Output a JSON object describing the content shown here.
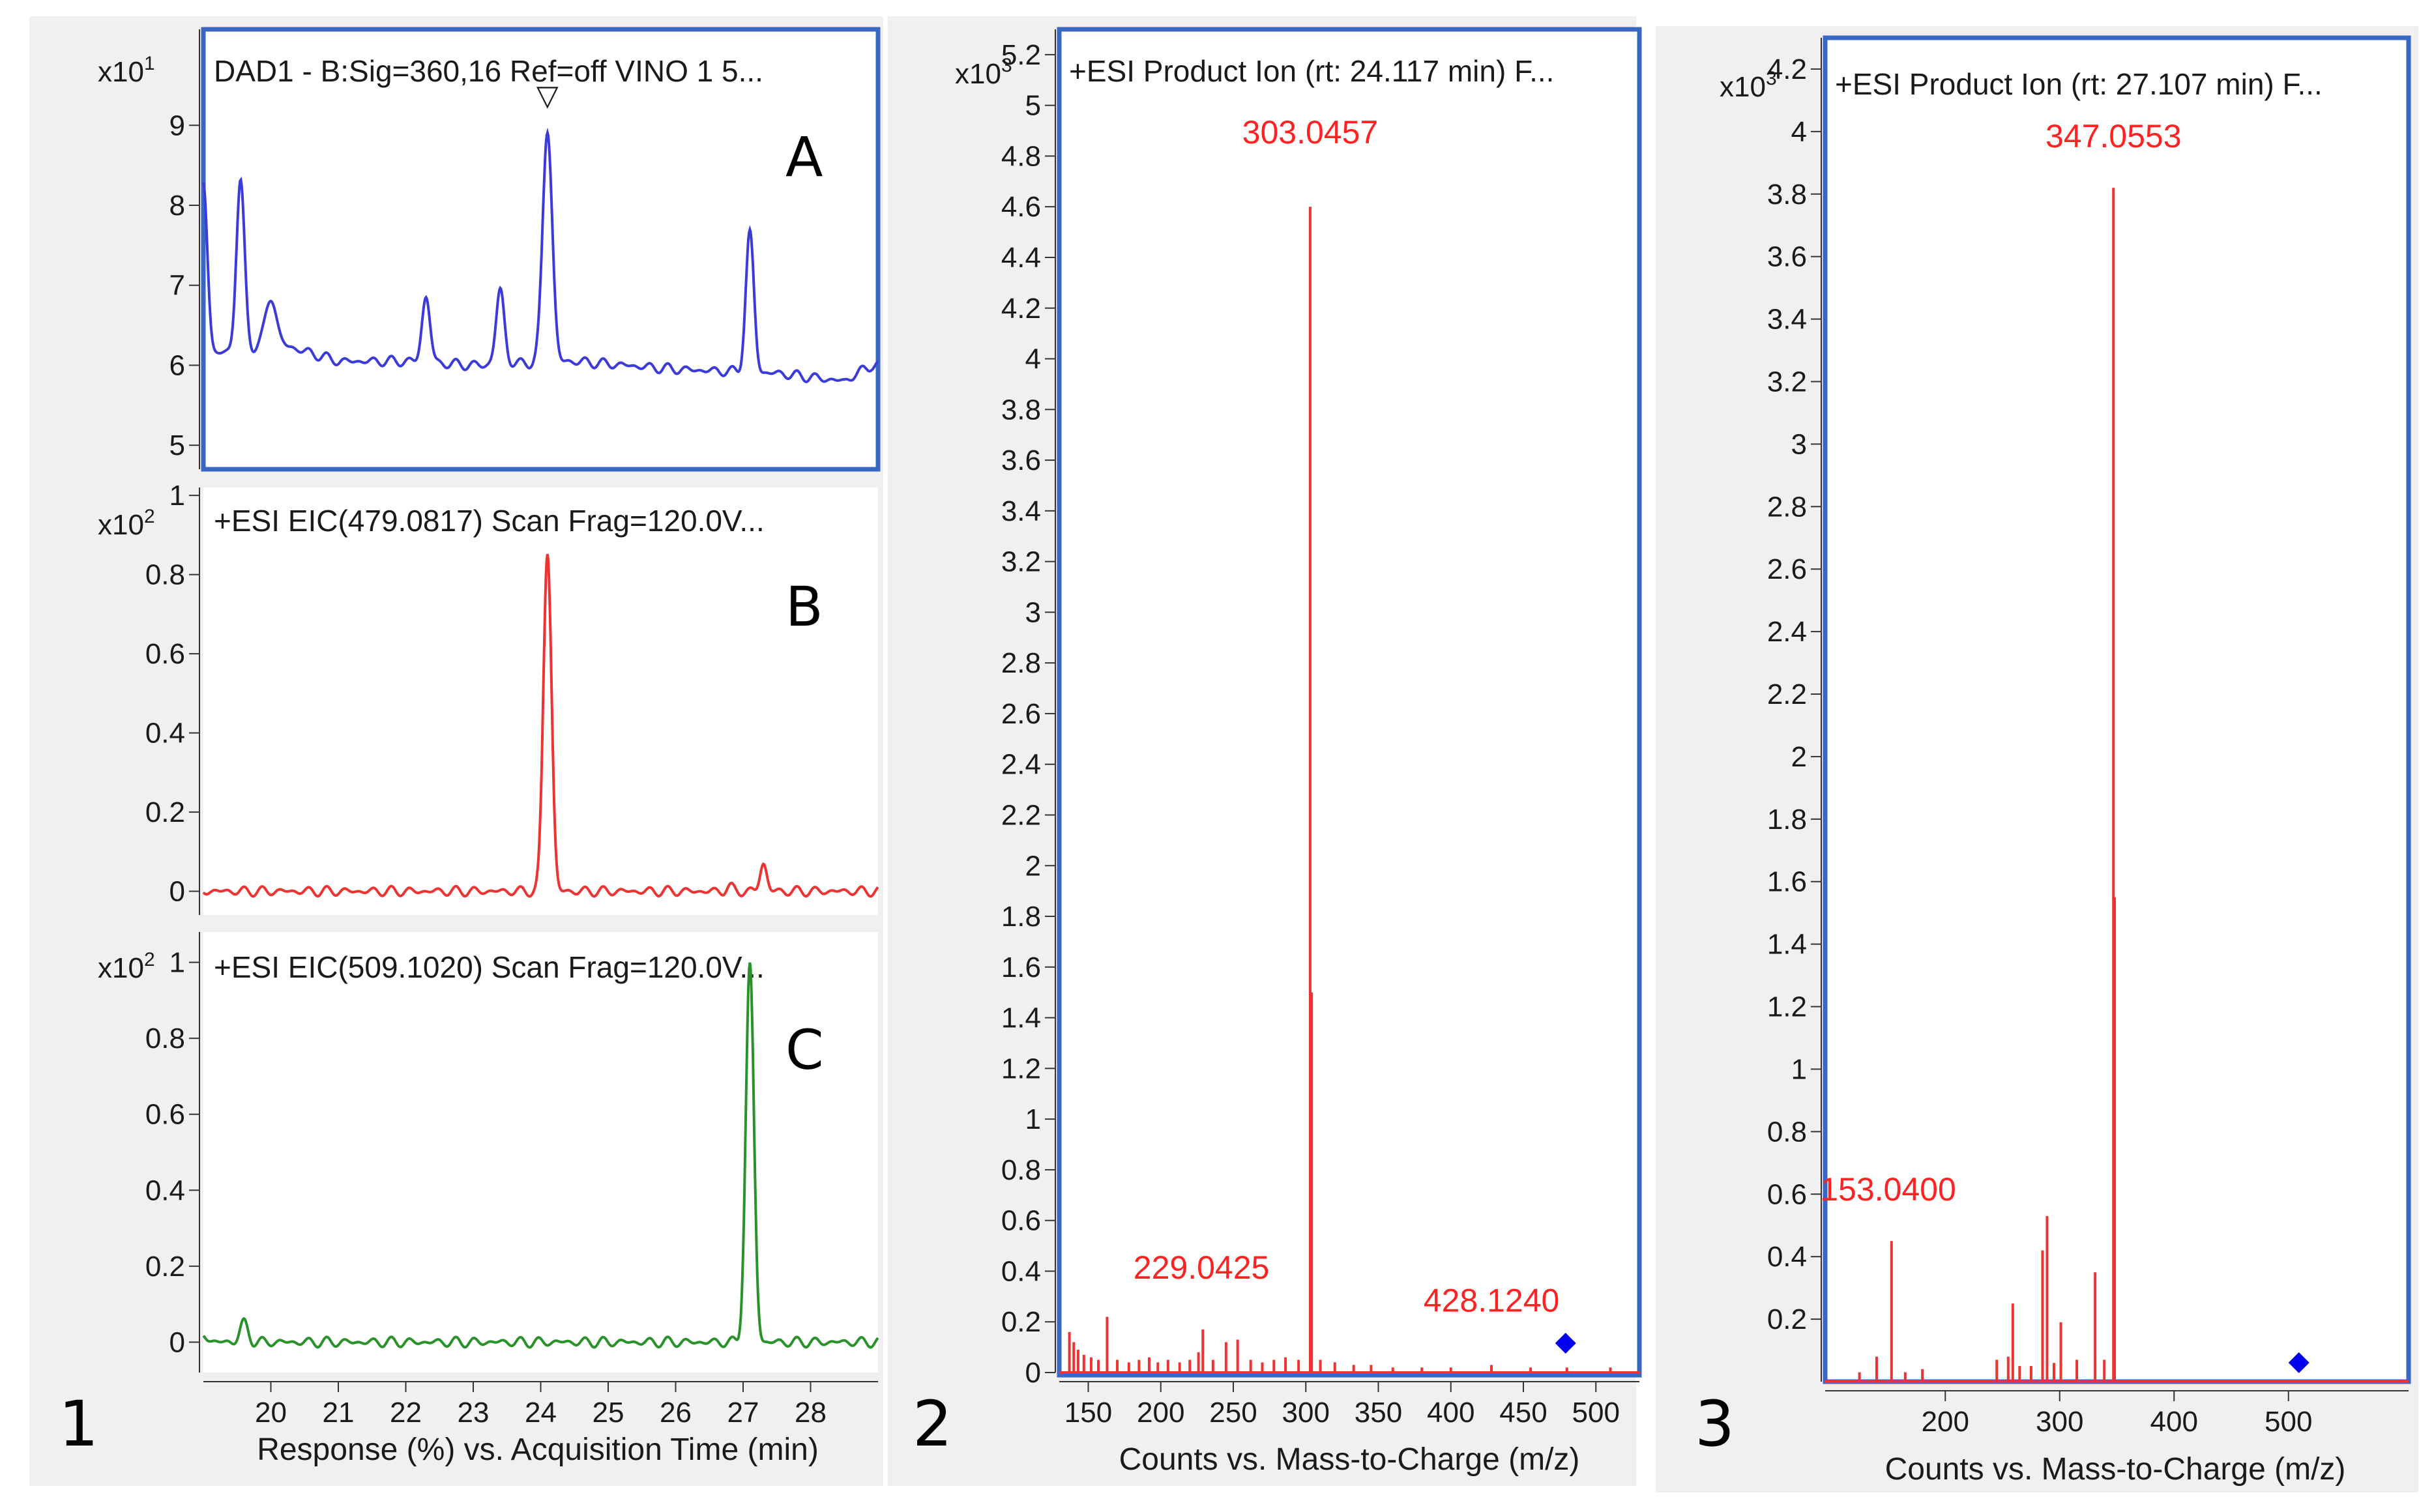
{
  "panel_numbers": [
    "1",
    "2",
    "3"
  ],
  "colors": {
    "frame": "#3a66c4",
    "blue_trace": "#3b3bd9",
    "red_trace": "#ee3333",
    "green_trace": "#2a922a",
    "marker": "#0000ee",
    "annotation": "#ff2222"
  },
  "chart_data": [
    {
      "id": "A",
      "type": "line",
      "panel_letter": "A",
      "title": "DAD1 - B:Sig=360,16  Ref=off VINO 1 5...",
      "multiplier_base": "x10",
      "multiplier_exp": "1",
      "xlim": [
        19.0,
        29.0
      ],
      "ylim": [
        4.7,
        10.2
      ],
      "yticks": [
        5,
        6,
        7,
        8,
        9
      ],
      "baseline_points": [
        [
          19.0,
          6.1
        ],
        [
          19.5,
          6.2
        ],
        [
          20.2,
          6.25
        ],
        [
          21.0,
          6.05
        ],
        [
          22.0,
          6.05
        ],
        [
          23.0,
          6.0
        ],
        [
          24.5,
          6.05
        ],
        [
          26.0,
          5.95
        ],
        [
          27.5,
          5.9
        ],
        [
          28.5,
          5.8
        ],
        [
          28.9,
          6.0
        ]
      ],
      "peaks": [
        [
          19.0,
          8.3,
          0.06
        ],
        [
          19.55,
          8.3,
          0.06
        ],
        [
          20.0,
          6.85,
          0.08
        ],
        [
          22.3,
          6.85,
          0.06
        ],
        [
          23.4,
          6.95,
          0.06
        ],
        [
          24.1,
          8.95,
          0.07
        ],
        [
          27.1,
          7.65,
          0.06
        ]
      ],
      "marker_label": "▽",
      "marker_x": 24.1
    },
    {
      "id": "B",
      "type": "line",
      "panel_letter": "B",
      "title": "+ESI EIC(479.0817) Scan Frag=120.0V...",
      "multiplier_base": "x10",
      "multiplier_exp": "2",
      "xlim": [
        19.0,
        29.0
      ],
      "ylim": [
        -0.06,
        1.02
      ],
      "yticks": [
        0,
        0.2,
        0.4,
        0.6,
        0.8,
        1
      ],
      "ytick_labels": [
        "0",
        "0.2",
        "0.4",
        "0.6",
        "0.8",
        "1"
      ],
      "baseline": 0.0,
      "peaks": [
        [
          24.1,
          0.86,
          0.06
        ],
        [
          27.3,
          0.07,
          0.05
        ],
        [
          26.8,
          0.01,
          0.05
        ]
      ]
    },
    {
      "id": "C",
      "type": "line",
      "panel_letter": "C",
      "title": "+ESI EIC(509.1020) Scan Frag=120.0V...",
      "multiplier_base": "x10",
      "multiplier_exp": "2",
      "xlim": [
        19.0,
        29.0
      ],
      "ylim": [
        -0.08,
        1.08
      ],
      "yticks": [
        0,
        0.2,
        0.4,
        0.6,
        0.8,
        1
      ],
      "ytick_labels": [
        "0",
        "0.2",
        "0.4",
        "0.6",
        "0.8",
        "1"
      ],
      "baseline": 0.0,
      "peaks": [
        [
          19.6,
          0.05,
          0.06
        ],
        [
          27.1,
          0.99,
          0.06
        ],
        [
          19.0,
          0.02,
          0.06
        ]
      ],
      "xticks": [
        20,
        21,
        22,
        23,
        24,
        25,
        26,
        27,
        28
      ],
      "xtick_labels": [
        "20",
        "21",
        "22",
        "23",
        "24",
        "25",
        "26",
        "27",
        "28"
      ],
      "xlabel": "Response (%) vs. Acquisition Time (min)"
    },
    {
      "id": "M2",
      "type": "bar",
      "title": "+ESI Product Ion (rt: 24.117 min) F...",
      "multiplier_base": "x10",
      "multiplier_exp": "3",
      "xlim": [
        130,
        530
      ],
      "ylim": [
        0,
        5.3
      ],
      "yticks": [
        0,
        0.2,
        0.4,
        0.6,
        0.8,
        1,
        1.2,
        1.4,
        1.6,
        1.8,
        2,
        2.2,
        2.4,
        2.6,
        2.8,
        3,
        3.2,
        3.4,
        3.6,
        3.8,
        4,
        4.2,
        4.4,
        4.6,
        4.8,
        5,
        5.2
      ],
      "ytick_labels": [
        "0",
        "0.2",
        "0.4",
        "0.6",
        "0.8",
        "1",
        "1.2",
        "1.4",
        "1.6",
        "1.8",
        "2",
        "2.2",
        "2.4",
        "2.6",
        "2.8",
        "3",
        "3.2",
        "3.4",
        "3.6",
        "3.8",
        "4",
        "4.2",
        "4.4",
        "4.6",
        "4.8",
        "5",
        "5.2"
      ],
      "xticks": [
        150,
        200,
        250,
        300,
        350,
        400,
        450,
        500
      ],
      "xtick_labels": [
        "150",
        "200",
        "250",
        "300",
        "350",
        "400",
        "450",
        "500"
      ],
      "xlabel": "Counts vs. Mass-to-Charge (m/z)",
      "peaks": [
        [
          303.0,
          4.6
        ],
        [
          304.0,
          1.5
        ],
        [
          137,
          0.16
        ],
        [
          140,
          0.12
        ],
        [
          143,
          0.09
        ],
        [
          147,
          0.07
        ],
        [
          152,
          0.06
        ],
        [
          157,
          0.05
        ],
        [
          163,
          0.22
        ],
        [
          170,
          0.05
        ],
        [
          178,
          0.04
        ],
        [
          185,
          0.05
        ],
        [
          192,
          0.06
        ],
        [
          198,
          0.04
        ],
        [
          205,
          0.05
        ],
        [
          213,
          0.04
        ],
        [
          220,
          0.05
        ],
        [
          226,
          0.08
        ],
        [
          229,
          0.17
        ],
        [
          236,
          0.05
        ],
        [
          245,
          0.12
        ],
        [
          253,
          0.13
        ],
        [
          262,
          0.05
        ],
        [
          270,
          0.04
        ],
        [
          278,
          0.05
        ],
        [
          286,
          0.06
        ],
        [
          295,
          0.05
        ],
        [
          310,
          0.05
        ],
        [
          320,
          0.04
        ],
        [
          333,
          0.03
        ],
        [
          345,
          0.03
        ],
        [
          360,
          0.02
        ],
        [
          380,
          0.02
        ],
        [
          400,
          0.02
        ],
        [
          428,
          0.03
        ],
        [
          455,
          0.02
        ],
        [
          480,
          0.02
        ],
        [
          510,
          0.02
        ]
      ],
      "annotations": [
        {
          "label": "303.0457",
          "x": 303.0,
          "y": 4.85
        },
        {
          "label": "229.0425",
          "x": 228,
          "y": 0.37
        },
        {
          "label": "428.1240",
          "x": 428,
          "y": 0.24
        }
      ],
      "marker_x": 479.1,
      "marker_y": 0.09
    },
    {
      "id": "M3",
      "type": "bar",
      "title": "+ESI Product Ion (rt: 27.107 min) F...",
      "multiplier_base": "x10",
      "multiplier_exp": "3",
      "xlim": [
        95,
        605
      ],
      "ylim": [
        0,
        4.3
      ],
      "yticks": [
        0.2,
        0.4,
        0.6,
        0.8,
        1,
        1.2,
        1.4,
        1.6,
        1.8,
        2,
        2.2,
        2.4,
        2.6,
        2.8,
        3,
        3.2,
        3.4,
        3.6,
        3.8,
        4,
        4.2
      ],
      "ytick_labels": [
        "0.2",
        "0.4",
        "0.6",
        "0.8",
        "1",
        "1.2",
        "1.4",
        "1.6",
        "1.8",
        "2",
        "2.2",
        "2.4",
        "2.6",
        "2.8",
        "3",
        "3.2",
        "3.4",
        "3.6",
        "3.8",
        "4",
        "4.2"
      ],
      "xticks": [
        200,
        300,
        400,
        500
      ],
      "xtick_labels": [
        "200",
        "300",
        "400",
        "500"
      ],
      "xlabel": "Counts vs. Mass-to-Charge (m/z)",
      "peaks": [
        [
          347.0,
          3.82
        ],
        [
          348.0,
          1.55
        ],
        [
          153.0,
          0.45
        ],
        [
          140,
          0.08
        ],
        [
          125,
          0.03
        ],
        [
          165,
          0.03
        ],
        [
          180,
          0.04
        ],
        [
          245,
          0.07
        ],
        [
          255,
          0.08
        ],
        [
          259,
          0.25
        ],
        [
          265,
          0.05
        ],
        [
          275,
          0.05
        ],
        [
          285,
          0.42
        ],
        [
          289,
          0.53
        ],
        [
          295,
          0.06
        ],
        [
          301,
          0.19
        ],
        [
          315,
          0.07
        ],
        [
          331,
          0.35
        ],
        [
          339,
          0.07
        ]
      ],
      "annotations": [
        {
          "label": "347.0553",
          "x": 347.0,
          "y": 3.95
        },
        {
          "label": "153.0400",
          "x": 150,
          "y": 0.58
        }
      ],
      "marker_x": 509.1,
      "marker_y": 0.04
    }
  ]
}
